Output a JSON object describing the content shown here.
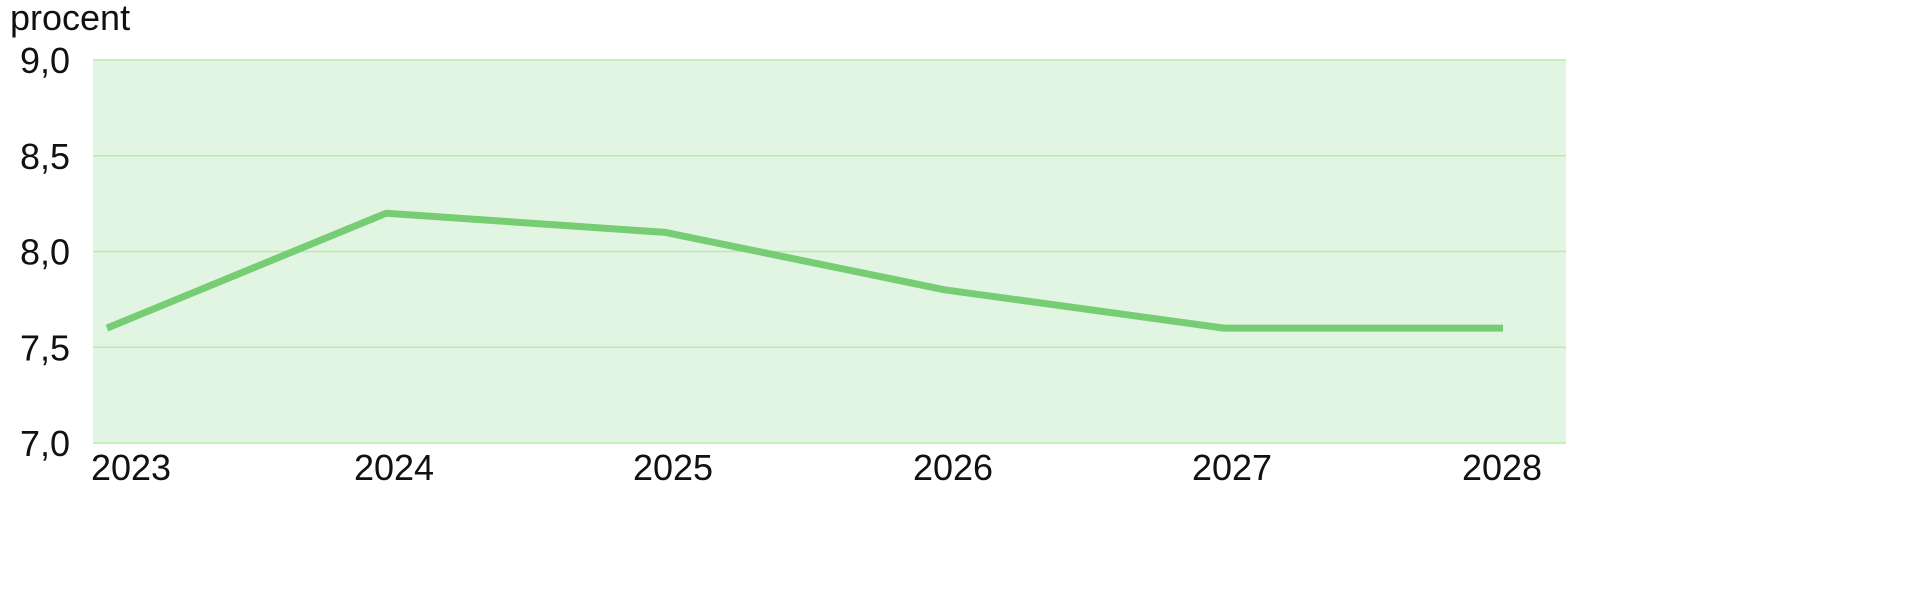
{
  "chart_data": {
    "type": "line",
    "ylabel": "procent",
    "ylim": [
      7.0,
      9.0
    ],
    "y_ticks": [
      "9,0",
      "8,5",
      "8,0",
      "7,5",
      "7,0"
    ],
    "x": [
      "2023",
      "2024",
      "2025",
      "2026",
      "2027",
      "2028"
    ],
    "series": [
      {
        "values": [
          7.6,
          8.2,
          8.1,
          7.8,
          7.6,
          7.6
        ]
      }
    ],
    "grid": true
  },
  "colors": {
    "plot_background": "#e2f4e2",
    "gridline": "#b8ecae",
    "line": "#76cd73"
  }
}
